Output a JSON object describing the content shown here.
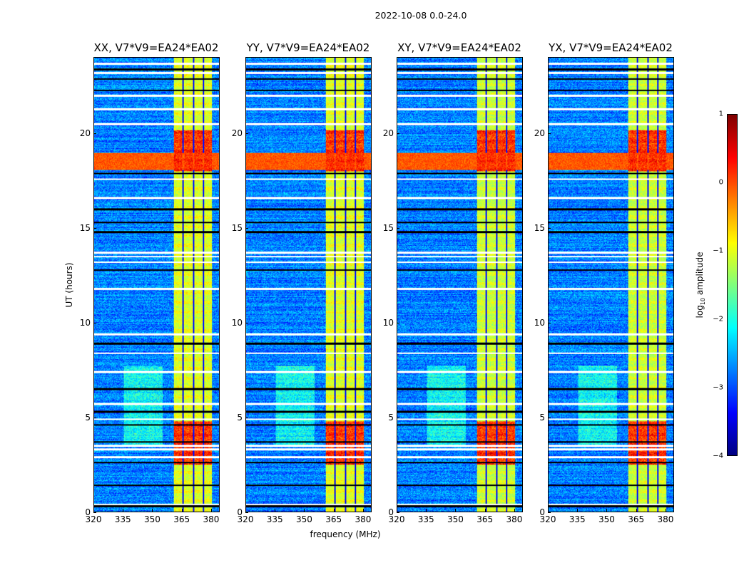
{
  "suptitle": "2022-10-08 0.0-24.0",
  "chart_data": {
    "type": "heatmap",
    "panels": [
      {
        "title": "XX, V7*V9=EA24*EA02"
      },
      {
        "title": "YY, V7*V9=EA24*EA02"
      },
      {
        "title": "XY, V7*V9=EA24*EA02"
      },
      {
        "title": "YX, V7*V9=EA24*EA02"
      }
    ],
    "xlabel": "frequency (MHz)",
    "ylabel": "UT (hours)",
    "xlim": [
      320,
      384.4
    ],
    "ylim": [
      0,
      24
    ],
    "xticks": [
      "320",
      "335",
      "350",
      "365",
      "380"
    ],
    "xtick_values": [
      320,
      335,
      350,
      365,
      380
    ],
    "yticks": [
      "0",
      "5",
      "10",
      "15",
      "20"
    ],
    "ytick_values": [
      0,
      5,
      10,
      15,
      20
    ],
    "colorbar": {
      "label_main": "log",
      "label_sub": "10",
      "label_rest": " amplitude",
      "range": [
        -4,
        1
      ],
      "ticks": [
        "1",
        "0",
        "−1",
        "−2",
        "−3",
        "−4"
      ],
      "tick_values": [
        1,
        0,
        -1,
        -2,
        -3,
        -4
      ],
      "colormap": "jet"
    },
    "features": {
      "rfi_band_mhz": [
        361,
        380.5
      ],
      "dark_channels_mhz": [
        365.6,
        371.2,
        376.3
      ],
      "strong_hours": [
        [
          2.5,
          4.8
        ],
        [
          18,
          20.2
        ]
      ],
      "broadband_hours": [
        18.1,
        19.0
      ],
      "blob_mhz": [
        335,
        355
      ],
      "blob_hours": [
        3.5,
        7.7
      ],
      "flagged_white_hours": [
        0.4,
        2.9,
        3.3,
        3.5,
        4.9,
        5.7,
        7.4,
        8.4,
        9.4,
        11.8,
        13.2,
        13.5,
        13.7,
        16.6,
        17.6,
        20.5,
        21.3,
        22.0,
        23.2,
        23.7
      ],
      "flagged_black_hours": [
        0.3,
        1.4,
        2.6,
        3.7,
        4.6,
        5.3,
        6.5,
        8.9,
        12.8,
        14.8,
        15.3,
        16.0,
        17.9,
        22.3,
        22.9,
        23.4
      ]
    }
  }
}
